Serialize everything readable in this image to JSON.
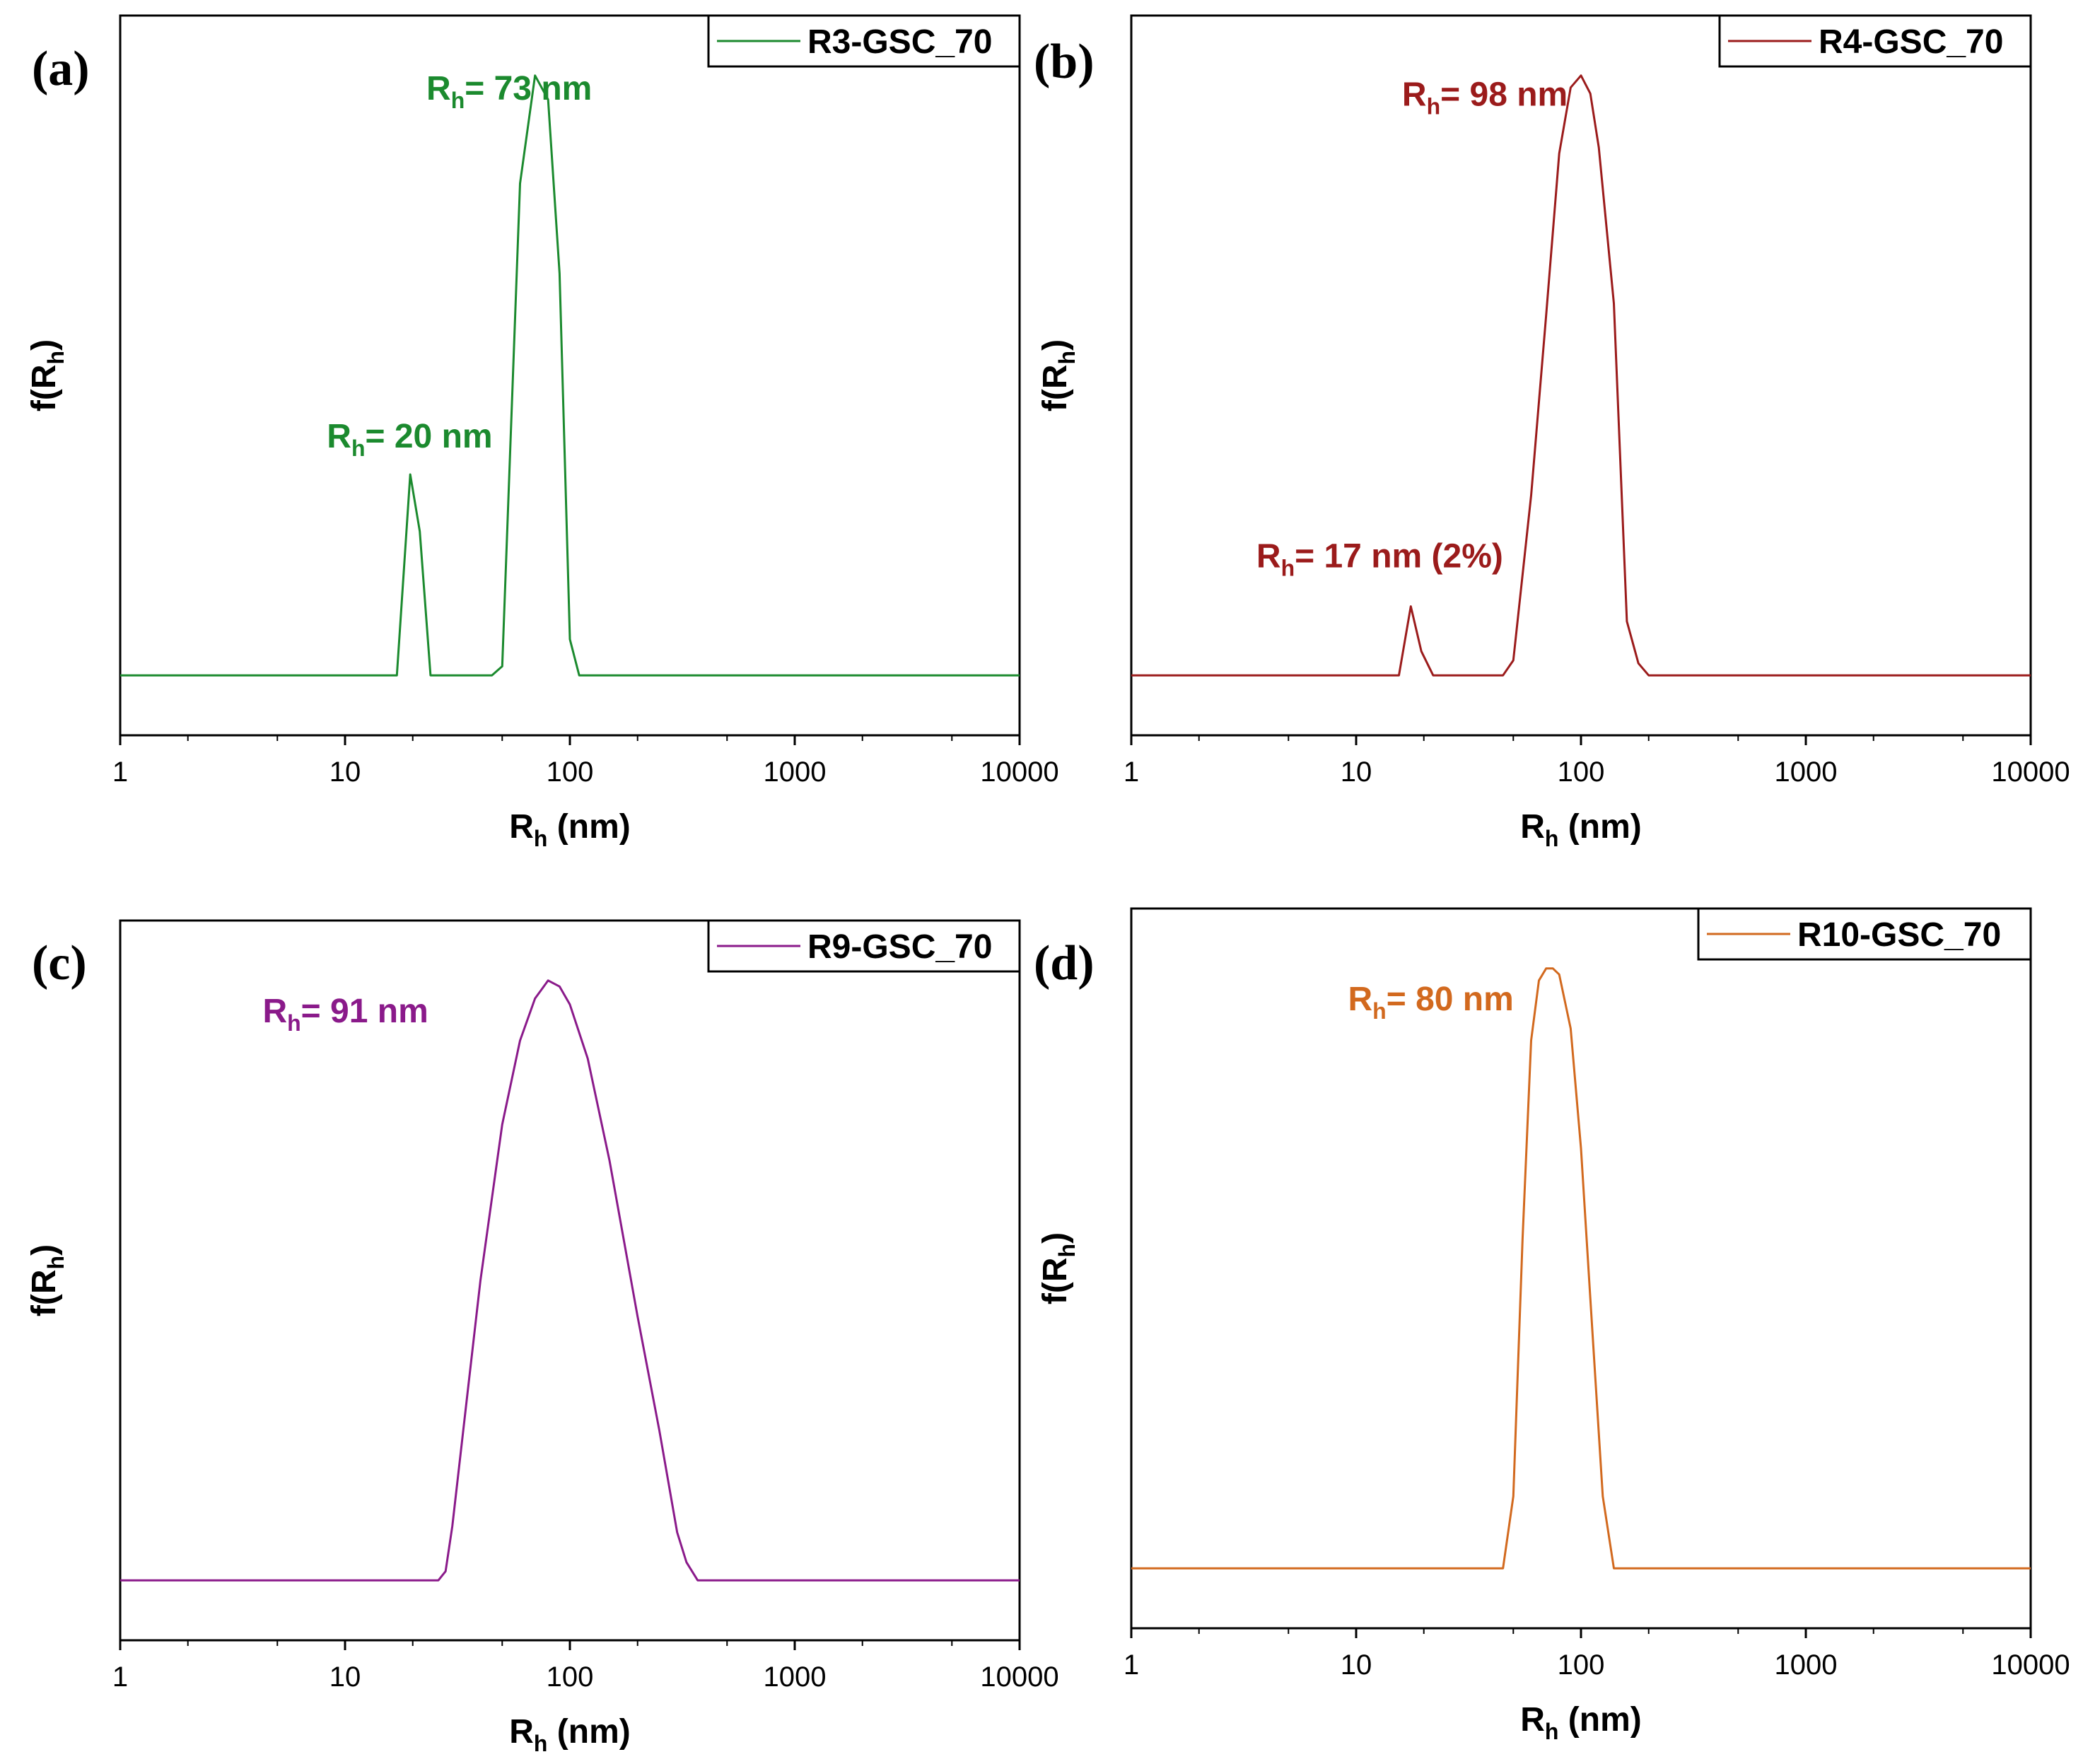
{
  "chart_data": [
    {
      "type": "line",
      "panel": "(a)",
      "series": [
        {
          "name": "R3-GSC_70",
          "color": "#1b8a2e",
          "x": [
            1,
            17,
            19.5,
            21.5,
            24,
            45,
            50,
            60,
            70,
            80,
            90,
            100,
            110,
            10000
          ],
          "y": [
            0,
            0,
            0.335,
            0.24,
            0,
            0,
            0.015,
            0.82,
            1.0,
            0.96,
            0.67,
            0.06,
            0,
            0
          ]
        }
      ],
      "xlabel": {
        "main": "R",
        "sub": "h",
        "tail": " (nm)"
      },
      "ylabel": {
        "main": "f(R",
        "sub": "h",
        "tail": ")"
      },
      "xscale": "log",
      "xlim": [
        1,
        10000
      ],
      "xticks": [
        "1",
        "10",
        "100",
        "1000",
        "10000"
      ],
      "ylim": [
        -0.1,
        1.1
      ],
      "legend_position": "top-right",
      "annotations": [
        {
          "main": "R",
          "sub": "h",
          "tail": "= 73 nm",
          "x": 23,
          "y": 0.96
        },
        {
          "main": "R",
          "sub": "h",
          "tail": "= 20 nm",
          "x": 8.3,
          "y": 0.38
        }
      ]
    },
    {
      "type": "line",
      "panel": "(b)",
      "series": [
        {
          "name": "R4-GSC_70",
          "color": "#9b1b1b",
          "x": [
            1,
            15.5,
            17.5,
            19.5,
            22,
            45,
            50,
            60,
            70,
            80,
            90,
            100,
            110,
            120,
            140,
            160,
            180,
            200,
            10000
          ],
          "y": [
            0,
            0,
            0.115,
            0.04,
            0,
            0,
            0.025,
            0.3,
            0.6,
            0.87,
            0.98,
            1.0,
            0.97,
            0.88,
            0.62,
            0.09,
            0.02,
            0,
            0
          ]
        }
      ],
      "xlabel": {
        "main": "R",
        "sub": "h",
        "tail": " (nm)"
      },
      "ylabel": {
        "main": "f(R",
        "sub": "h",
        "tail": ")"
      },
      "xscale": "log",
      "xlim": [
        1,
        10000
      ],
      "xticks": [
        "1",
        "10",
        "100",
        "1000",
        "10000"
      ],
      "ylim": [
        -0.1,
        1.1
      ],
      "legend_position": "top-right",
      "annotations": [
        {
          "main": "R",
          "sub": "h",
          "tail": "= 98 nm",
          "x": 16,
          "y": 0.95
        },
        {
          "main": "R",
          "sub": "h",
          "tail": "= 17 nm (2%)",
          "x": 3.6,
          "y": 0.18
        }
      ]
    },
    {
      "type": "line",
      "panel": "(c)",
      "series": [
        {
          "name": "R9-GSC_70",
          "color": "#8a1a8a",
          "x": [
            1,
            26,
            28,
            30,
            35,
            40,
            50,
            60,
            70,
            80,
            90,
            100,
            120,
            150,
            200,
            250,
            300,
            330,
            370,
            10000
          ],
          "y": [
            0,
            0,
            0.015,
            0.09,
            0.31,
            0.5,
            0.76,
            0.9,
            0.97,
            1.0,
            0.99,
            0.96,
            0.87,
            0.7,
            0.44,
            0.25,
            0.08,
            0.03,
            0,
            0
          ]
        }
      ],
      "xlabel": {
        "main": "R",
        "sub": "h",
        "tail": " (nm)"
      },
      "ylabel": {
        "main": "f(R",
        "sub": "h",
        "tail": ")"
      },
      "xscale": "log",
      "xlim": [
        1,
        10000
      ],
      "xticks": [
        "1",
        "10",
        "100",
        "1000",
        "10000"
      ],
      "ylim": [
        -0.1,
        1.1
      ],
      "legend_position": "top-right",
      "annotations": [
        {
          "main": "R",
          "sub": "h",
          "tail": "= 91 nm",
          "x": 4.3,
          "y": 0.93
        }
      ]
    },
    {
      "type": "line",
      "panel": "(d)",
      "series": [
        {
          "name": "R10-GSC_70",
          "color": "#d2691e",
          "x": [
            1,
            45,
            50,
            55,
            60,
            65,
            70,
            75,
            80,
            90,
            100,
            110,
            125,
            140,
            10000
          ],
          "y": [
            0,
            0,
            0.12,
            0.55,
            0.88,
            0.98,
            1.0,
            1.0,
            0.99,
            0.9,
            0.7,
            0.45,
            0.12,
            0,
            0
          ]
        }
      ],
      "xlabel": {
        "main": "R",
        "sub": "h",
        "tail": " (nm)"
      },
      "ylabel": {
        "main": "f(R",
        "sub": "h",
        "tail": ")"
      },
      "xscale": "log",
      "xlim": [
        1,
        10000
      ],
      "xticks": [
        "1",
        "10",
        "100",
        "1000",
        "10000"
      ],
      "ylim": [
        -0.1,
        1.1
      ],
      "legend_position": "top-right",
      "annotations": [
        {
          "main": "R",
          "sub": "h",
          "tail": "= 80 nm",
          "x": 9.2,
          "y": 0.93
        }
      ]
    }
  ]
}
